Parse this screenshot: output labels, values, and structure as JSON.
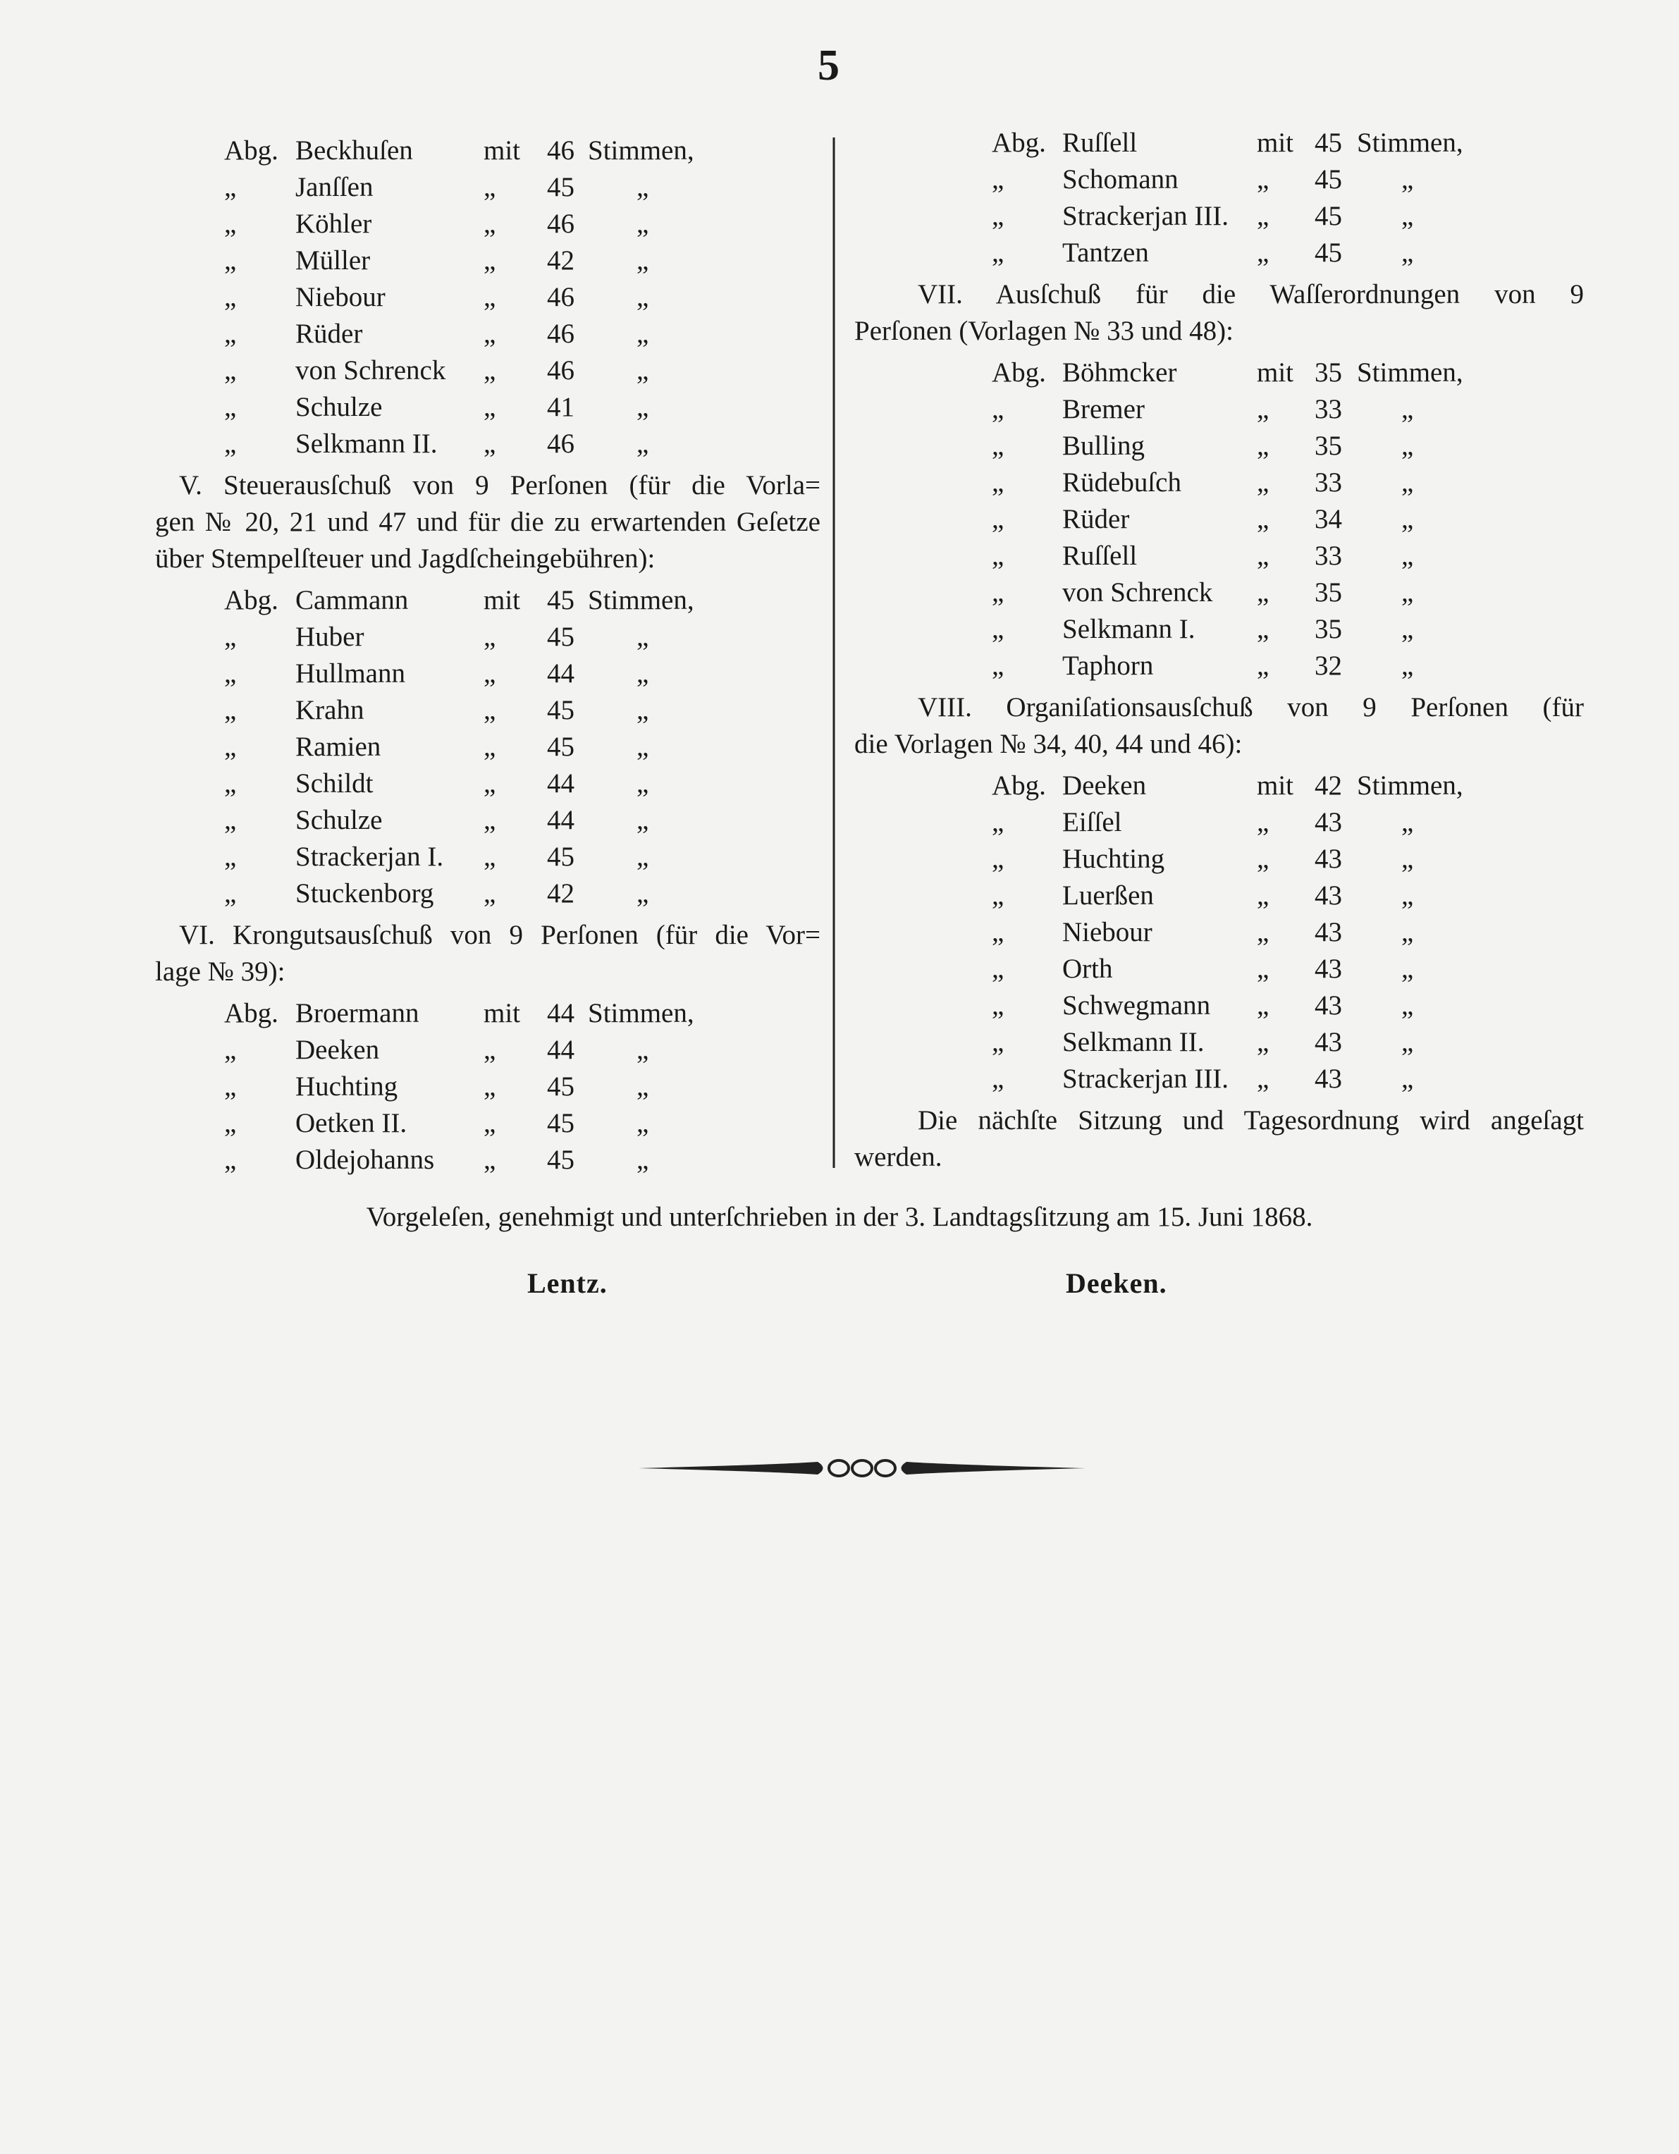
{
  "page_number": "5",
  "left_column": [
    {
      "rows": [
        [
          "Abg.",
          "Beckhuſen",
          "mit",
          "46",
          "Stimmen,"
        ],
        [
          "„",
          "Janſſen",
          "„",
          "45",
          "„"
        ],
        [
          "„",
          "Köhler",
          "„",
          "46",
          "„"
        ],
        [
          "„",
          "Müller",
          "„",
          "42",
          "„"
        ],
        [
          "„",
          "Niebour",
          "„",
          "46",
          "„"
        ],
        [
          "„",
          "Rüder",
          "„",
          "46",
          "„"
        ],
        [
          "„",
          "von Schrenck",
          "„",
          "46",
          "„"
        ],
        [
          "„",
          "Schulze",
          "„",
          "41",
          "„"
        ],
        [
          "„",
          "Selkmann II.",
          "„",
          "46",
          "„"
        ]
      ]
    },
    {
      "paragraph": [
        "V. Steuerausſchuß von 9 Perſonen (für die Vorla=",
        "gen № 20, 21 und 47 und für die zu erwartenden Geſetze",
        "über Stempelſteuer und Jagdſcheingebühren):"
      ]
    },
    {
      "rows": [
        [
          "Abg.",
          "Cammann",
          "mit",
          "45",
          "Stimmen,"
        ],
        [
          "„",
          "Huber",
          "„",
          "45",
          "„"
        ],
        [
          "„",
          "Hullmann",
          "„",
          "44",
          "„"
        ],
        [
          "„",
          "Krahn",
          "„",
          "45",
          "„"
        ],
        [
          "„",
          "Ramien",
          "„",
          "45",
          "„"
        ],
        [
          "„",
          "Schildt",
          "„",
          "44",
          "„"
        ],
        [
          "„",
          "Schulze",
          "„",
          "44",
          "„"
        ],
        [
          "„",
          "Strackerjan I.",
          "„",
          "45",
          "„"
        ],
        [
          "„",
          "Stuckenborg",
          "„",
          "42",
          "„"
        ]
      ]
    },
    {
      "paragraph": [
        "VI. Krongutsausſchuß von 9 Perſonen (für die Vor=",
        "lage № 39):"
      ]
    },
    {
      "rows": [
        [
          "Abg.",
          "Broermann",
          "mit",
          "44",
          "Stimmen,"
        ],
        [
          "„",
          "Deeken",
          "„",
          "44",
          "„"
        ],
        [
          "„",
          "Huchting",
          "„",
          "45",
          "„"
        ],
        [
          "„",
          "Oetken II.",
          "„",
          "45",
          "„"
        ],
        [
          "„",
          "Oldejohanns",
          "„",
          "45",
          "„"
        ]
      ]
    }
  ],
  "right_column": [
    {
      "rows": [
        [
          "Abg.",
          "Ruſſell",
          "mit",
          "45",
          "Stimmen,"
        ],
        [
          "„",
          "Schomann",
          "„",
          "45",
          "„"
        ],
        [
          "„",
          "Strackerjan III.",
          "„",
          "45",
          "„"
        ],
        [
          "„",
          "Tantzen",
          "„",
          "45",
          "„"
        ]
      ]
    },
    {
      "paragraph": [
        "VII. Ausſchuß für die Waſſerordnungen von 9",
        "Perſonen (Vorlagen № 33 und 48):"
      ]
    },
    {
      "rows": [
        [
          "Abg.",
          "Böhmcker",
          "mit",
          "35",
          "Stimmen,"
        ],
        [
          "„",
          "Bremer",
          "„",
          "33",
          "„"
        ],
        [
          "„",
          "Bulling",
          "„",
          "35",
          "„"
        ],
        [
          "„",
          "Rüdebuſch",
          "„",
          "33",
          "„"
        ],
        [
          "„",
          "Rüder",
          "„",
          "34",
          "„"
        ],
        [
          "„",
          "Ruſſell",
          "„",
          "33",
          "„"
        ],
        [
          "„",
          "von Schrenck",
          "„",
          "35",
          "„"
        ],
        [
          "„",
          "Selkmann I.",
          "„",
          "35",
          "„"
        ],
        [
          "„",
          "Taphorn",
          "„",
          "32",
          "„"
        ]
      ]
    },
    {
      "paragraph": [
        "VIII. Organiſationsausſchuß von 9 Perſonen (für",
        "die Vorlagen № 34, 40, 44 und 46):"
      ]
    },
    {
      "rows": [
        [
          "Abg.",
          "Deeken",
          "mit",
          "42",
          "Stimmen,"
        ],
        [
          "„",
          "Eiſſel",
          "„",
          "43",
          "„"
        ],
        [
          "„",
          "Huchting",
          "„",
          "43",
          "„"
        ],
        [
          "„",
          "Luerßen",
          "„",
          "43",
          "„"
        ],
        [
          "„",
          "Niebour",
          "„",
          "43",
          "„"
        ],
        [
          "„",
          "Orth",
          "„",
          "43",
          "„"
        ],
        [
          "„",
          "Schwegmann",
          "„",
          "43",
          "„"
        ],
        [
          "„",
          "Selkmann II.",
          "„",
          "43",
          "„"
        ],
        [
          "„",
          "Strackerjan III.",
          "„",
          "43",
          "„"
        ]
      ]
    },
    {
      "paragraph": [
        "Die nächſte Sitzung und Tagesordnung wird angeſagt",
        "werden."
      ]
    }
  ],
  "footer": "Vorgeleſen, genehmigt und unterſchrieben in der 3. Landtagsſitzung am 15. Juni 1868.",
  "signatures": [
    "Lentz.",
    "Deeken."
  ]
}
